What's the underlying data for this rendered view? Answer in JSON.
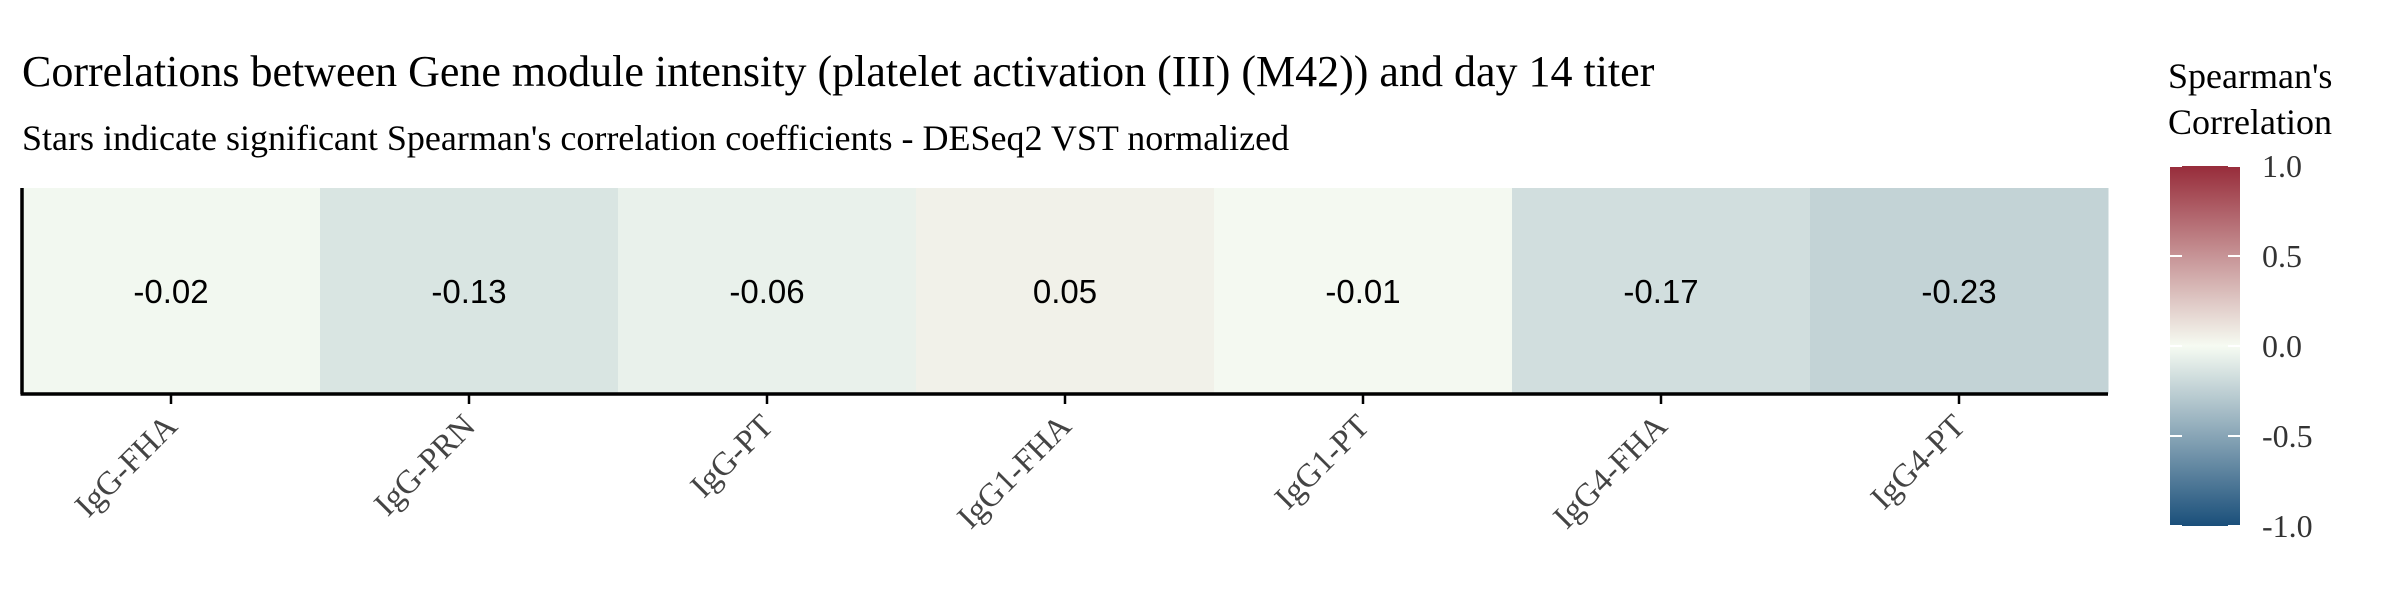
{
  "chart_data": {
    "type": "heatmap",
    "title": "Correlations between Gene module intensity (platelet activation (III) (M42)) and day 14 titer",
    "subtitle": "Stars indicate significant Spearman's correlation coefficients - DESeq2 VST normalized",
    "categories": [
      "IgG-FHA",
      "IgG-PRN",
      "IgG-PT",
      "IgG1-FHA",
      "IgG1-PT",
      "IgG4-FHA",
      "IgG4-PT"
    ],
    "values": [
      -0.02,
      -0.13,
      -0.06,
      0.05,
      -0.01,
      -0.17,
      -0.23
    ],
    "value_labels": [
      "-0.02",
      "-0.13",
      "-0.06",
      "0.05",
      "-0.01",
      "-0.17",
      "-0.23"
    ],
    "legend": {
      "title_lines": [
        "Spearman's",
        "Correlation"
      ],
      "ticks": [
        1.0,
        0.5,
        0.0,
        -0.5,
        -1.0
      ],
      "tick_labels": [
        "1.0",
        "0.5",
        "0.0",
        "-0.5",
        "-1.0"
      ],
      "range": [
        -1,
        1
      ],
      "placement": "right"
    },
    "colors": {
      "low": "#1a4f7a",
      "mid": "#f6fbf2",
      "high": "#972c3a"
    }
  }
}
